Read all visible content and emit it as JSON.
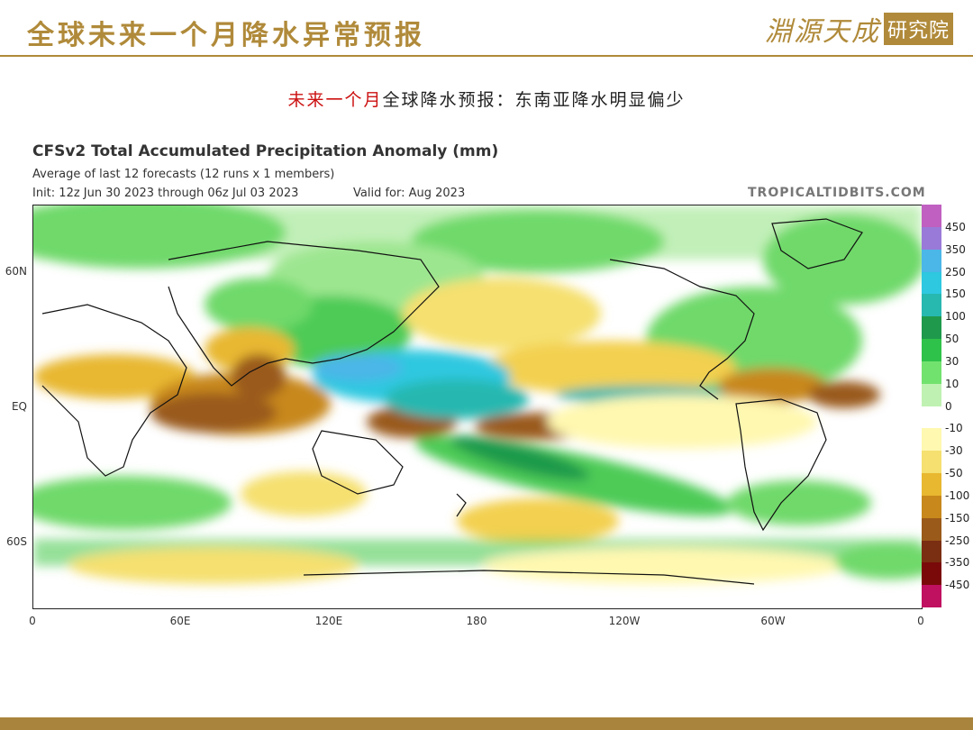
{
  "slide": {
    "title": "全球未来一个月降水异常预报",
    "subtitle_red": "未来一个月",
    "subtitle_rest": "全球降水预报：东南亚降水明显偏少",
    "logo_script": "淵源天成",
    "logo_box": "研究院",
    "accent_color": "#b08a3a",
    "highlight_color": "#cc1111"
  },
  "map": {
    "title": "CFSv2 Total Accumulated Precipitation Anomaly (mm)",
    "line2": "Average of last 12 forecasts (12 runs x 1 members)",
    "init": "Init: 12z Jun 30 2023 through 06z Jul 03 2023",
    "valid": "Valid for: Aug 2023",
    "brand": "TROPICALTIDBITS.COM",
    "lat_labels": [
      "60N",
      "EQ",
      "60S"
    ],
    "lon_labels": [
      "0",
      "60E",
      "120E",
      "180",
      "120W",
      "60W",
      "0"
    ],
    "colorbar": {
      "labels": [
        "450",
        "350",
        "250",
        "150",
        "100",
        "50",
        "30",
        "10",
        "0",
        "-10",
        "-30",
        "-50",
        "-100",
        "-150",
        "-250",
        "-350",
        "-450"
      ],
      "colors": [
        "#c060c0",
        "#9a7ad8",
        "#4bb6e8",
        "#2ec8e0",
        "#27b8b0",
        "#1f9a4c",
        "#2fc24a",
        "#72e26e",
        "#bff2b2",
        "#ffffff",
        "#fff8b0",
        "#f5e070",
        "#e8b830",
        "#c8881c",
        "#9a5a1a",
        "#7a2e12",
        "#7a0a0a",
        "#c01060"
      ]
    }
  }
}
